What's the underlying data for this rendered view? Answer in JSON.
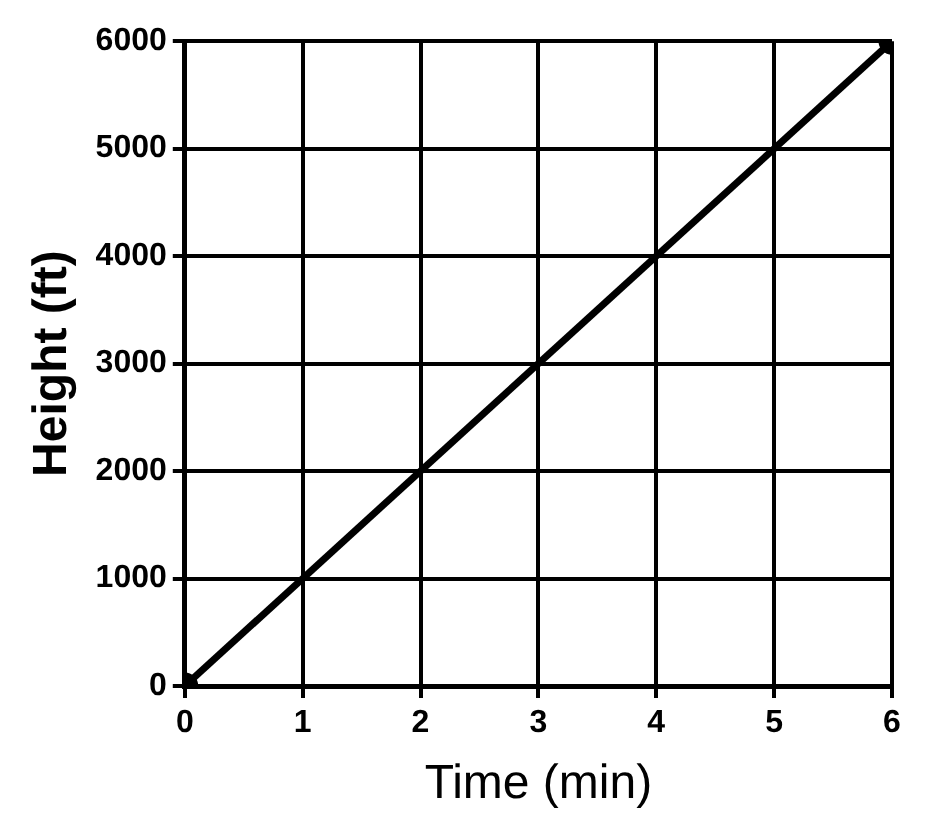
{
  "chart_data": {
    "type": "line",
    "xlabel": "Time (min)",
    "ylabel": "Height (ft)",
    "x": [
      0,
      6
    ],
    "series": [
      {
        "color": "#000000",
        "values": [
          0,
          6000
        ]
      }
    ],
    "xlim": [
      0,
      6
    ],
    "xticks": [
      0,
      1,
      2,
      3,
      4,
      5,
      6
    ],
    "ylim": [
      0,
      6000
    ],
    "yticks": [
      0,
      1000,
      2000,
      3000,
      4000,
      5000,
      6000
    ],
    "grid": true,
    "legend": false,
    "marker": "circle",
    "line_style": "solid"
  }
}
